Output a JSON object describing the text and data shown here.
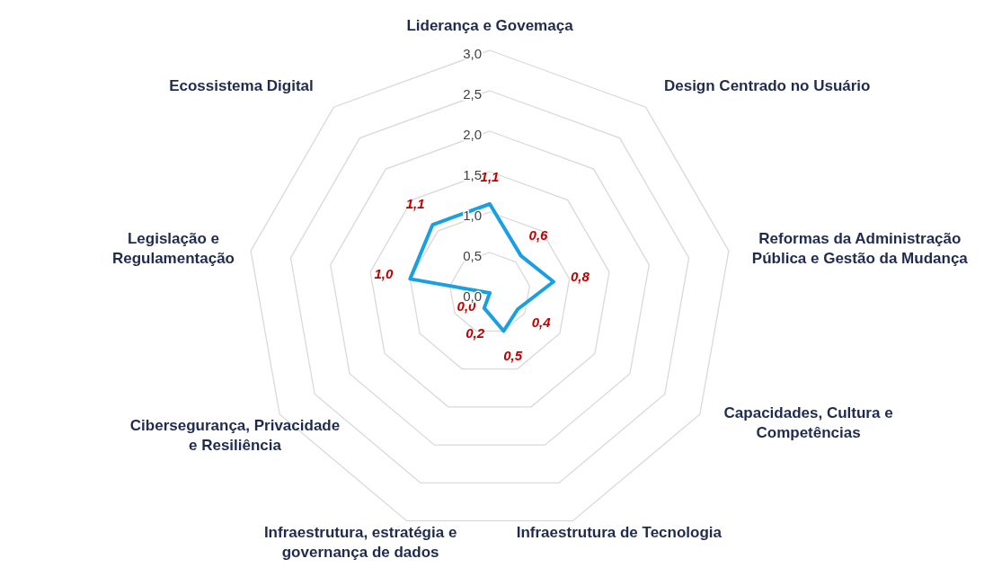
{
  "chart_data": {
    "type": "radar",
    "categories": [
      "Liderança e Govemaça",
      "Design Centrado no Usuário",
      "Reformas da Administração Pública e Gestão da Mudança",
      "Capacidades, Cultura e Competências",
      "Infraestrutura de Tecnologia",
      "Infraestrutura, estratégia e governança de dados",
      "Cibersegurança, Privacidade e Resiliência",
      "Legislação e Regulamentação",
      "Ecossistema Digital"
    ],
    "series": [
      {
        "color": "#1a9fe0",
        "values": [
          1.1,
          0.6,
          0.8,
          0.4,
          0.5,
          0.2,
          0.0,
          1.0,
          1.1
        ],
        "value_labels": [
          "1,1",
          "0,6",
          "0,8",
          "0,4",
          "0,5",
          "0,2",
          "0,0",
          "1,0",
          "1,1"
        ]
      }
    ],
    "ylim": [
      0,
      3
    ],
    "yticks": [
      {
        "value": 0,
        "label": "0,0"
      },
      {
        "value": 0.5,
        "label": "0,5"
      },
      {
        "value": 1,
        "label": "1,0"
      },
      {
        "value": 1.5,
        "label": "1,5"
      },
      {
        "value": 2,
        "label": "2,0"
      },
      {
        "value": 2.5,
        "label": "2,5"
      },
      {
        "value": 3,
        "label": "3,0"
      }
    ],
    "grid": true
  }
}
